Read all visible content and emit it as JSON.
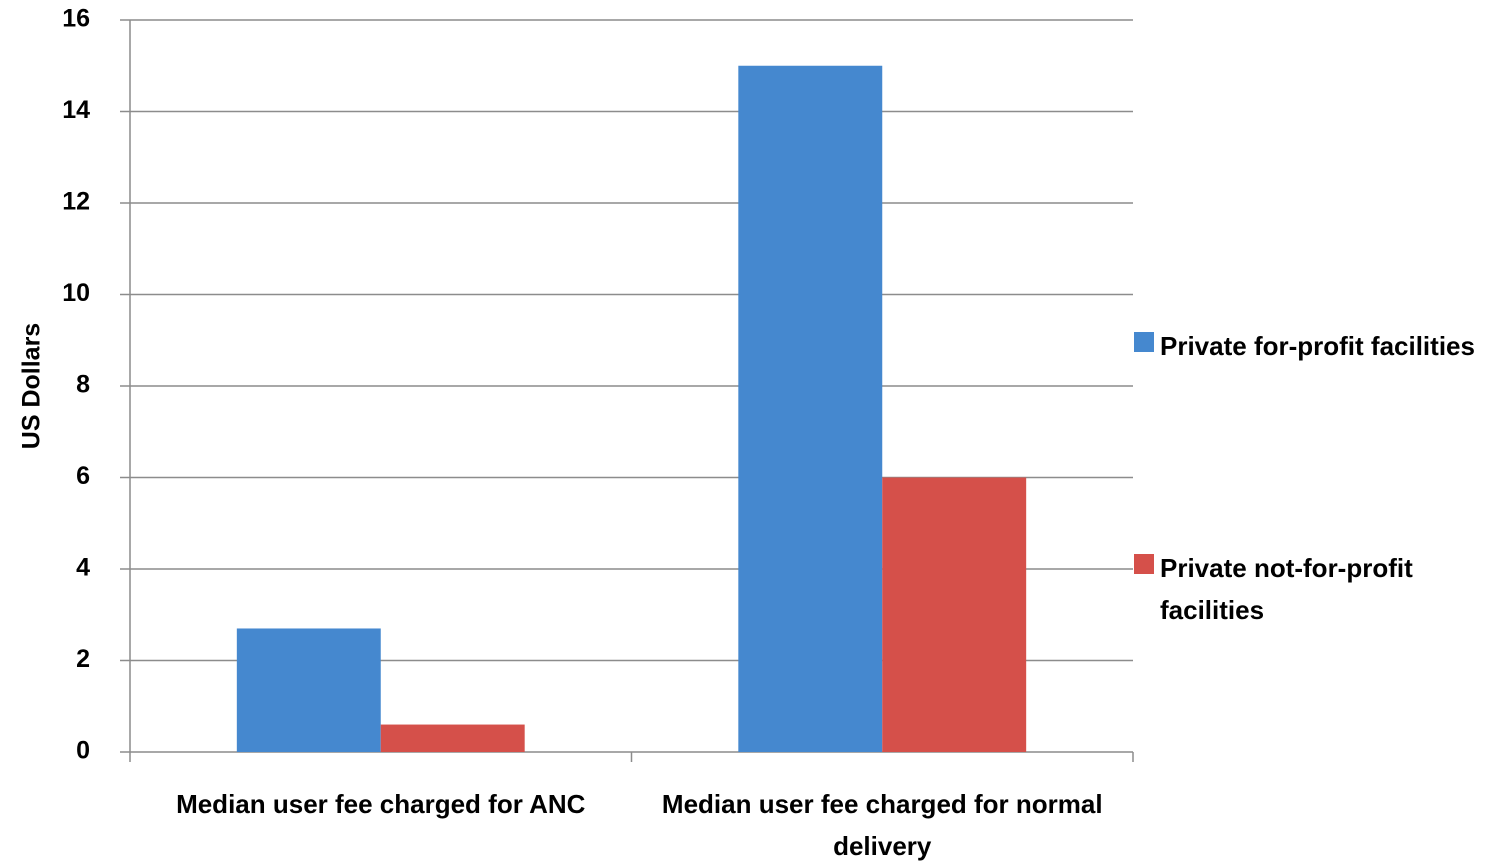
{
  "chart_data": {
    "type": "bar",
    "categories": [
      "Median user fee charged for ANC",
      "Median user fee charged for normal delivery"
    ],
    "series": [
      {
        "name": "Private for-profit facilities",
        "color": "#4588cf",
        "values": [
          2.7,
          15
        ]
      },
      {
        "name": "Private not-for-profit facilities",
        "color": "#d5504a",
        "values": [
          0.6,
          6
        ]
      }
    ],
    "y_label": "US Dollars",
    "ylim": [
      0,
      16
    ],
    "yticks": [
      0,
      2,
      4,
      6,
      8,
      10,
      12,
      14,
      16
    ],
    "grid": true,
    "legend": "right"
  }
}
